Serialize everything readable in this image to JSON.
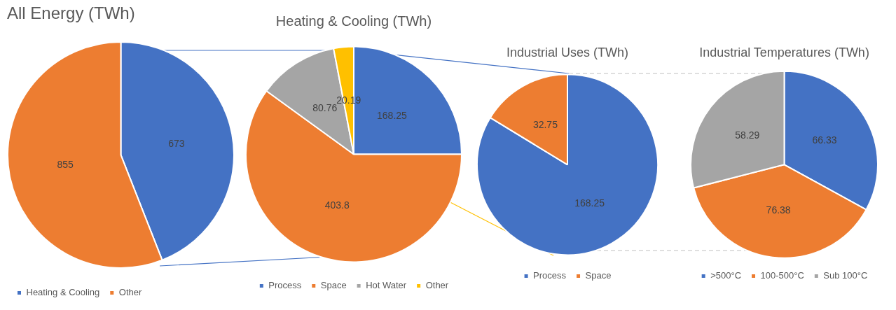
{
  "chart_data": [
    {
      "type": "pie",
      "title": "All Energy (TWh)",
      "categories": [
        "Heating & Cooling",
        "Other"
      ],
      "values": [
        673,
        855
      ],
      "colors": [
        "#4472c4",
        "#ed7d31"
      ],
      "data_labels": true,
      "legend": "bottom left"
    },
    {
      "type": "pie",
      "title": "Heating & Cooling (TWh)",
      "categories": [
        "Process",
        "Space",
        "Hot Water",
        "Other"
      ],
      "values": [
        168.25,
        403.8,
        80.76,
        20.19
      ],
      "colors": [
        "#4472c4",
        "#ed7d31",
        "#a5a5a5",
        "#ffc000"
      ],
      "data_labels": true,
      "legend": "bottom"
    },
    {
      "type": "pie",
      "title": "Industrial Uses (TWh)",
      "categories": [
        "Process",
        "Space"
      ],
      "values": [
        168.25,
        32.75
      ],
      "colors": [
        "#4472c4",
        "#ed7d31"
      ],
      "data_labels": true,
      "legend": "bottom"
    },
    {
      "type": "pie",
      "title": "Industrial Temperatures (TWh)",
      "categories": [
        ">500°C",
        "100-500°C",
        "Sub 100°C"
      ],
      "values": [
        66.33,
        76.38,
        58.29
      ],
      "colors": [
        "#4472c4",
        "#ed7d31",
        "#a5a5a5"
      ],
      "data_labels": true,
      "legend": "bottom"
    }
  ]
}
